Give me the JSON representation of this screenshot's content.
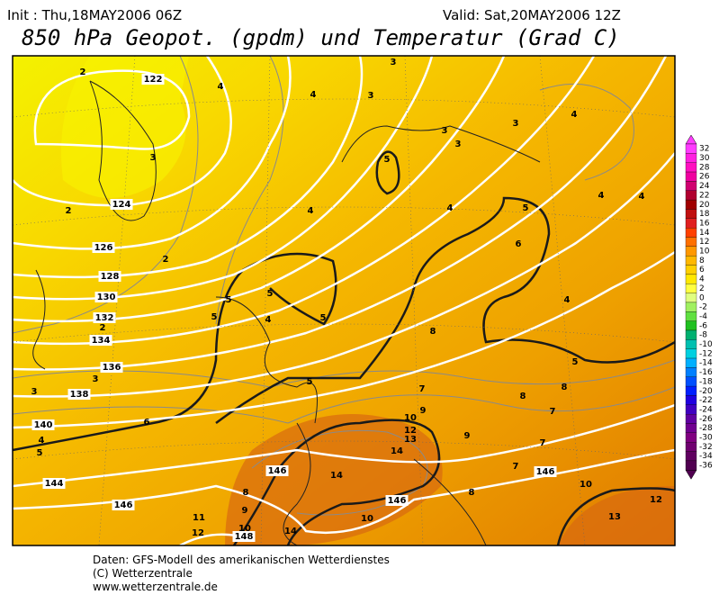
{
  "header": {
    "init": "Init : Thu,18MAY2006 06Z",
    "valid": "Valid: Sat,20MAY2006 12Z",
    "title": "850 hPa Geopot. (gpdm) und Temperatur (Grad C)"
  },
  "colorbar": {
    "labels": [
      32,
      30,
      28,
      26,
      24,
      22,
      20,
      18,
      16,
      14,
      12,
      10,
      8,
      6,
      4,
      2,
      0,
      -2,
      -4,
      -6,
      -8,
      -10,
      -12,
      -14,
      -16,
      -18,
      -20,
      -22,
      -24,
      -26,
      -28,
      -30,
      -32,
      -34,
      -36
    ]
  },
  "contour_labels": [
    "122",
    "124",
    "126",
    "128",
    "130",
    "132",
    "134",
    "136",
    "138",
    "140",
    "144",
    "146",
    "146",
    "146",
    "146",
    "148",
    "2",
    "4",
    "4",
    "3",
    "3",
    "3",
    "2",
    "2",
    "3",
    "3",
    "3",
    "4",
    "5",
    "4",
    "4",
    "4",
    "4",
    "5",
    "6",
    "5",
    "5",
    "5",
    "4",
    "5",
    "4",
    "8",
    "5",
    "5",
    "2",
    "3",
    "3",
    "4",
    "5",
    "6",
    "7",
    "8",
    "8",
    "7",
    "9",
    "10",
    "12",
    "13",
    "9",
    "7",
    "14",
    "14",
    "7",
    "10",
    "8",
    "8",
    "9",
    "11",
    "12",
    "10",
    "14",
    "10",
    "13",
    "12"
  ],
  "footer": {
    "lines": [
      "Daten: GFS-Modell des amerikanischen Wetterdienstes",
      "(C) Wetterzentrale",
      "www.wetterzentrale.de"
    ]
  }
}
